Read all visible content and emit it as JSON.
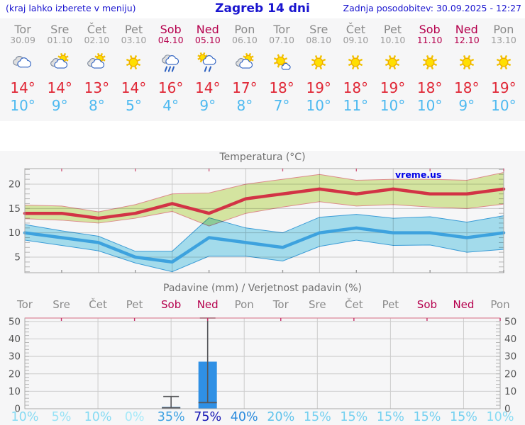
{
  "header": {
    "hint": "(kraj lahko izberete v meniju)",
    "title": "Zagreb 14 dni",
    "updated": "Zadnja posodobitev: 30.09.2025 - 12:27"
  },
  "watermark": "vreme.us",
  "colors": {
    "header_blue": "#1a15cf",
    "weekend": "#b5004d",
    "weekday": "#8a8a8a",
    "tmax_red": "#e02736",
    "tmin_blue": "#4db9f0",
    "grid": "#c9c9c9",
    "axis_border": "#a9a9a9",
    "bar_blue": "#2f90e5",
    "whisker_gray": "#55565a"
  },
  "forecast": {
    "days": [
      {
        "name": "Tor",
        "date": "30.09",
        "weekend": false,
        "icon": "cloudy",
        "tmax": "14°",
        "tmin": "10°"
      },
      {
        "name": "Sre",
        "date": "01.10",
        "weekend": false,
        "icon": "sun-cloud",
        "tmax": "14°",
        "tmin": "9°"
      },
      {
        "name": "Čet",
        "date": "02.10",
        "weekend": false,
        "icon": "sun-cloud",
        "tmax": "13°",
        "tmin": "8°"
      },
      {
        "name": "Pet",
        "date": "03.10",
        "weekend": false,
        "icon": "sunny",
        "tmax": "14°",
        "tmin": "5°"
      },
      {
        "name": "Sob",
        "date": "04.10",
        "weekend": true,
        "icon": "rain",
        "tmax": "16°",
        "tmin": "4°"
      },
      {
        "name": "Ned",
        "date": "05.10",
        "weekend": true,
        "icon": "sun-rain",
        "tmax": "14°",
        "tmin": "9°"
      },
      {
        "name": "Pon",
        "date": "06.10",
        "weekend": false,
        "icon": "sun-cloud",
        "tmax": "17°",
        "tmin": "8°"
      },
      {
        "name": "Tor",
        "date": "07.10",
        "weekend": false,
        "icon": "mostly-sunny",
        "tmax": "18°",
        "tmin": "7°"
      },
      {
        "name": "Sre",
        "date": "08.10",
        "weekend": false,
        "icon": "sunny",
        "tmax": "19°",
        "tmin": "10°"
      },
      {
        "name": "Čet",
        "date": "09.10",
        "weekend": false,
        "icon": "sunny",
        "tmax": "18°",
        "tmin": "11°"
      },
      {
        "name": "Pet",
        "date": "10.10",
        "weekend": false,
        "icon": "sunny",
        "tmax": "19°",
        "tmin": "10°"
      },
      {
        "name": "Sob",
        "date": "11.10",
        "weekend": true,
        "icon": "sunny",
        "tmax": "18°",
        "tmin": "10°"
      },
      {
        "name": "Ned",
        "date": "12.10",
        "weekend": true,
        "icon": "sunny",
        "tmax": "18°",
        "tmin": "9°"
      },
      {
        "name": "Pon",
        "date": "13.10",
        "weekend": false,
        "icon": "sunny",
        "tmax": "19°",
        "tmin": "10°"
      }
    ]
  },
  "chart_data": [
    {
      "type": "line",
      "title": "Temperatura (°C)",
      "x_labels": [
        "Tor",
        "Sre",
        "Čet",
        "Pet",
        "Sob",
        "Ned",
        "Pon",
        "Tor",
        "Sre",
        "Čet",
        "Pet",
        "Sob",
        "Ned",
        "Pon"
      ],
      "ylim": [
        1.8,
        23.2
      ],
      "yticks": [
        5,
        10,
        15,
        20
      ],
      "grid": true,
      "series": [
        {
          "name": "max temperature",
          "color": "#d23345",
          "values": [
            14,
            14,
            13,
            14,
            16,
            14,
            17,
            18,
            19,
            18,
            19,
            18,
            18,
            19
          ]
        },
        {
          "name": "min temperature",
          "color": "#3da2de",
          "values": [
            10,
            9,
            8,
            5,
            4,
            9,
            8,
            7,
            10,
            11,
            10,
            10,
            9,
            10
          ]
        }
      ],
      "bands": [
        {
          "name": "max range",
          "fill": "#dceda5",
          "edge": "#e59090",
          "upper": [
            15.7,
            15.5,
            14.3,
            15.8,
            18,
            18.2,
            20,
            21,
            22,
            20.8,
            21,
            21,
            20.8,
            22.4
          ],
          "lower": [
            12.9,
            12.6,
            12,
            13,
            14.4,
            11.4,
            14,
            15.3,
            16.4,
            15.5,
            15.8,
            15.3,
            15,
            15.9
          ]
        },
        {
          "name": "min range",
          "fill": "#a9e3f3",
          "edge": "#3da2de",
          "upper": [
            11.7,
            10.4,
            9.3,
            6.2,
            6.2,
            13.1,
            11,
            10,
            13.2,
            13.8,
            13,
            13.3,
            12.2,
            13.5
          ],
          "lower": [
            8.5,
            7.4,
            6.3,
            3.8,
            2,
            5.2,
            5.2,
            4.2,
            7.2,
            8.5,
            7.4,
            7.5,
            6,
            6.6
          ]
        }
      ]
    },
    {
      "type": "bar",
      "title": "Padavine (mm) / Verjetnost padavin (%)",
      "x_labels": [
        "Tor",
        "Sre",
        "Čet",
        "Pet",
        "Sob",
        "Ned",
        "Pon",
        "Tor",
        "Sre",
        "Čet",
        "Pet",
        "Sob",
        "Ned",
        "Pon"
      ],
      "ylim": [
        0,
        52
      ],
      "yticks": [
        0,
        10,
        20,
        30,
        40,
        50
      ],
      "grid": true,
      "bar_color": "#2f90e5",
      "values": [
        0,
        0,
        0,
        0,
        1,
        27,
        0,
        0,
        0,
        0,
        0,
        0,
        0,
        0
      ],
      "whiskers": [
        {
          "day_index": 4,
          "lo": 0.5,
          "hi": 7
        },
        {
          "day_index": 5,
          "lo": 3.5,
          "hi": 52
        }
      ],
      "probabilities": [
        "10%",
        "5%",
        "10%",
        "0%",
        "35%",
        "75%",
        "40%",
        "20%",
        "15%",
        "15%",
        "15%",
        "15%",
        "15%",
        "10%"
      ],
      "prob_colors": [
        "#87dbf3",
        "#98e2f6",
        "#87dbf3",
        "#a5e9f9",
        "#3fa2e2",
        "#1717b4",
        "#2b8bdd",
        "#5fc3ec",
        "#74d0f0",
        "#74d0f0",
        "#74d0f0",
        "#74d0f0",
        "#74d0f0",
        "#87dbf3"
      ]
    }
  ]
}
